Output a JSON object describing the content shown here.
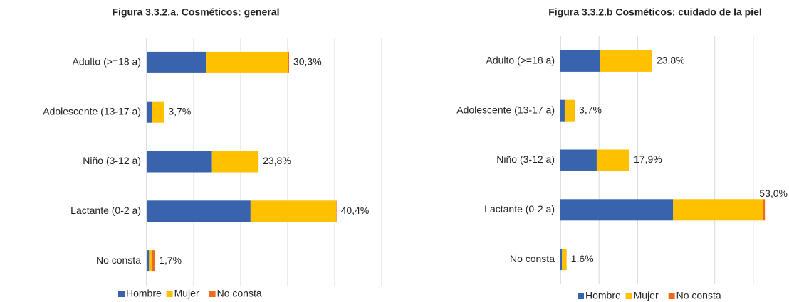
{
  "chart_data": [
    {
      "type": "stacked_barh",
      "title": "Figura 3.3.2.a. Cosméticos: general",
      "categories": [
        "Adulto (>=18 a)",
        "Adolescente (13-17 a)",
        "Niño (3-12 a)",
        "Lactante (0-2 a)",
        "No consta"
      ],
      "series": [
        {
          "name": "Hombre",
          "color": "#3a63ad",
          "values": [
            12.6,
            1.2,
            13.9,
            22.1,
            0.5
          ]
        },
        {
          "name": "Mujer",
          "color": "#ffc000",
          "values": [
            17.5,
            2.5,
            9.8,
            18.2,
            0.6
          ]
        },
        {
          "name": "No consta",
          "color": "#ed6b1e",
          "values": [
            0.2,
            0,
            0.1,
            0.1,
            0.6
          ]
        }
      ],
      "totals": [
        30.3,
        3.7,
        23.8,
        40.4,
        1.7
      ],
      "total_labels": [
        "30,3%",
        "3,7%",
        "23,8%",
        "40,4%",
        "1,7%"
      ],
      "xlim": [
        0,
        50
      ],
      "xticks": [
        0,
        10,
        20,
        30,
        40,
        50
      ],
      "grid": true,
      "legend": "bottom"
    },
    {
      "type": "stacked_barh",
      "title": "Figura 3.3.2.b Cosméticos: cuidado de la piel",
      "categories": [
        "Adulto (>=18 a)",
        "Adolescente (13-17 a)",
        "Niño (3-12 a)",
        "Lactante (0-2 a)",
        "No consta"
      ],
      "series": [
        {
          "name": "Hombre",
          "color": "#3a63ad",
          "values": [
            10.3,
            1.1,
            9.4,
            29.2,
            0.4
          ]
        },
        {
          "name": "Mujer",
          "color": "#ffc000",
          "values": [
            13.4,
            2.6,
            8.5,
            23.3,
            1.2
          ]
        },
        {
          "name": "No consta",
          "color": "#ed6b1e",
          "values": [
            0.1,
            0,
            0,
            0.5,
            0
          ]
        }
      ],
      "totals": [
        23.8,
        3.7,
        17.9,
        53.0,
        1.6
      ],
      "total_labels": [
        "23,8%",
        "3,7%",
        "17,9%",
        "53,0%",
        "1,6%"
      ],
      "xlim": [
        0,
        55
      ],
      "xticks": [
        0,
        10,
        20,
        30,
        40,
        50
      ],
      "grid": true,
      "legend": "bottom"
    }
  ]
}
